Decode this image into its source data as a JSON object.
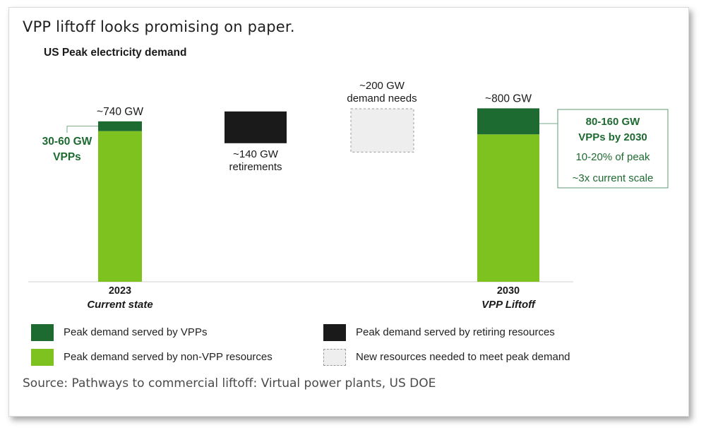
{
  "headline": "VPP liftoff looks promising on paper.",
  "source": "Source: Pathways to commercial liftoff: Virtual power plants, US DOE",
  "colors": {
    "vpp": "#1e6b32",
    "non_vpp": "#7dc21e",
    "retiring": "#1a1a1a",
    "new_needed": "#eeeeee",
    "callout_text": "#1e6b32"
  },
  "chart_data": {
    "type": "bar",
    "title": "US Peak electricity demand",
    "ylabel": "",
    "xlabel": "",
    "unit": "GW",
    "bars": [
      {
        "id": "2023",
        "year": "2023",
        "label": "Current state",
        "total": 740,
        "total_label": "~740 GW",
        "segments": [
          {
            "series": "Peak demand served by non-VPP resources",
            "value": 695
          },
          {
            "series": "Peak demand served by VPPs",
            "value": 45
          }
        ],
        "callout": [
          "30-60 GW",
          "VPPs"
        ]
      },
      {
        "id": "retirements",
        "value": 140,
        "float_base": 740,
        "series": "Peak demand served by retiring resources",
        "label_lines": [
          "~140 GW",
          "retirements"
        ]
      },
      {
        "id": "needs",
        "value": 200,
        "float_base": 600,
        "series": "New resources needed to meet peak demand",
        "label_lines": [
          "~200 GW",
          "demand needs"
        ]
      },
      {
        "id": "2030",
        "year": "2030",
        "label": "VPP Liftoff",
        "total": 800,
        "total_label": "~800 GW",
        "segments": [
          {
            "series": "Peak demand served by non-VPP resources",
            "value": 680
          },
          {
            "series": "Peak demand served by VPPs",
            "value": 120
          }
        ],
        "callout": [
          "80-160 GW",
          "VPPs by 2030",
          "10-20% of peak",
          "~3x current scale"
        ]
      }
    ],
    "legend": [
      {
        "key": "vpp",
        "label": "Peak demand served by VPPs"
      },
      {
        "key": "non_vpp",
        "label": "Peak demand served by non-VPP resources"
      },
      {
        "key": "retiring",
        "label": "Peak demand served by retiring resources"
      },
      {
        "key": "new_needed",
        "label": "New resources needed to meet peak demand"
      }
    ]
  }
}
